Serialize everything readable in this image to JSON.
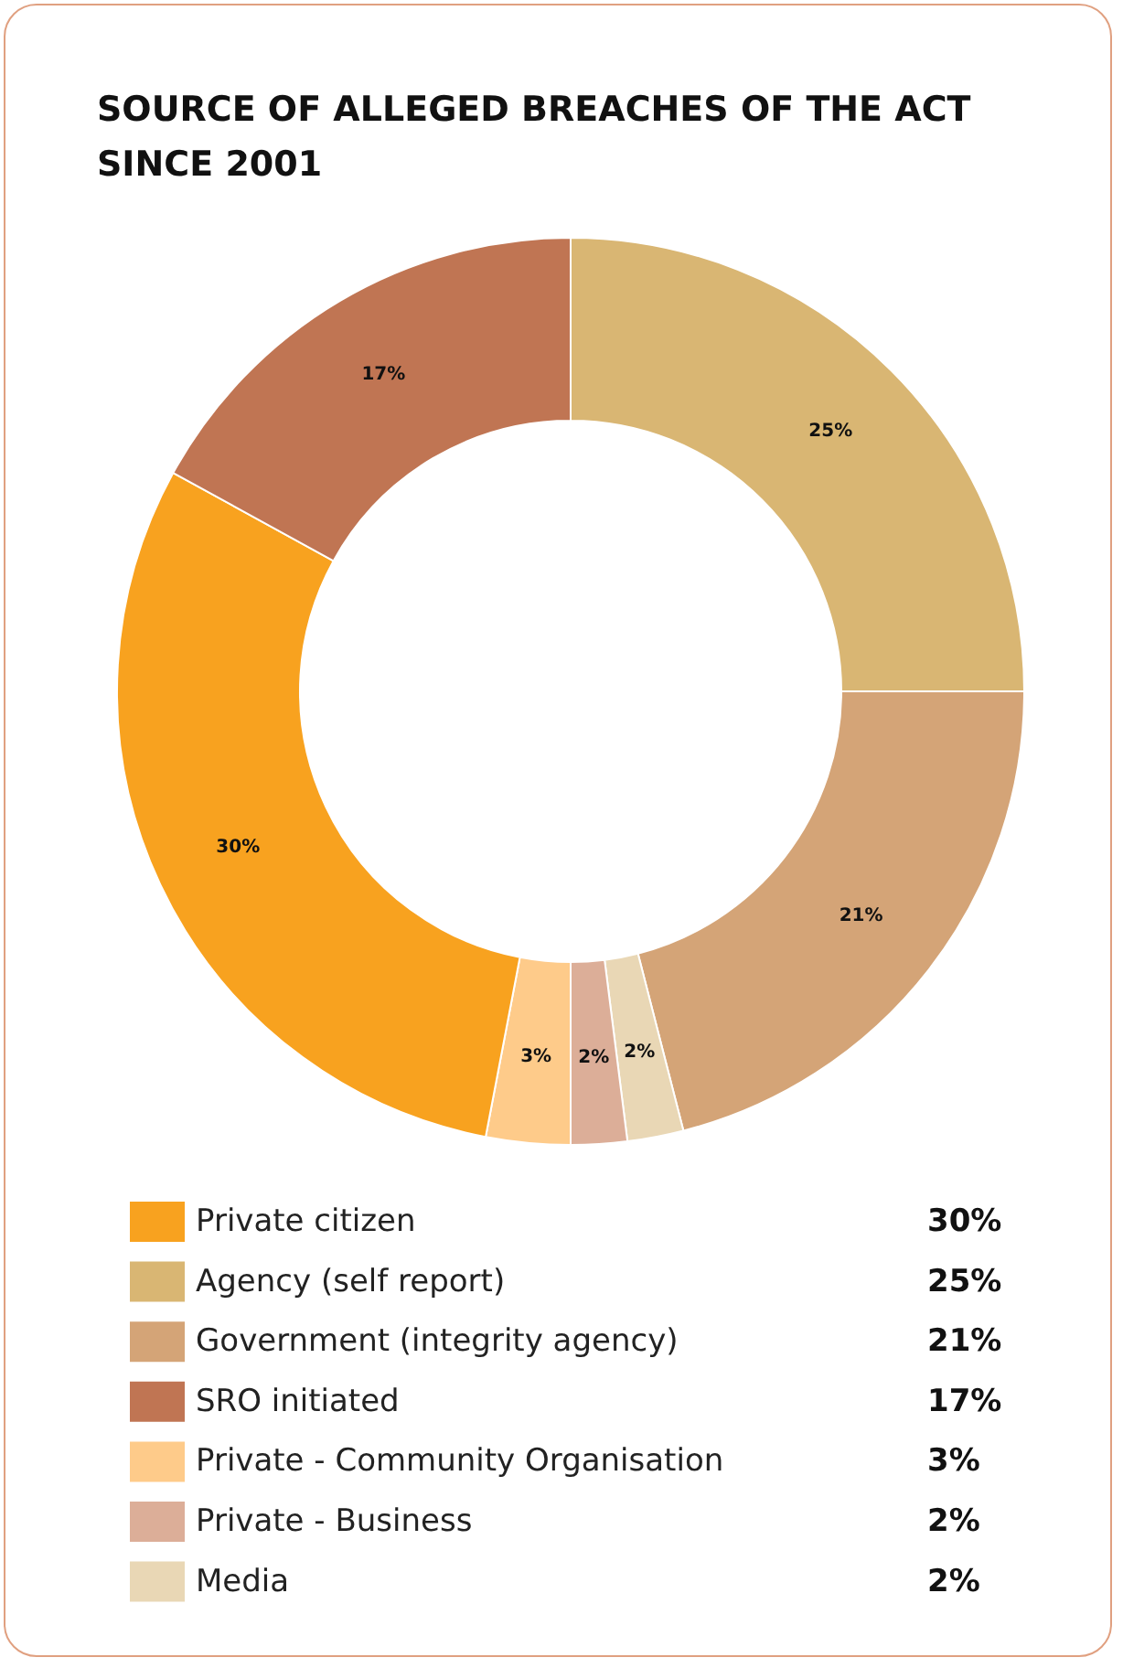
{
  "chart_data": {
    "type": "donut",
    "title": "SOURCE OF ALLEGED BREACHES OF THE ACT SINCE 2001",
    "categories": [
      "Agency (self report)",
      "Government (integrity agency)",
      "Media",
      "Private - Business",
      "Private - Community Organisation",
      "Private citizen",
      "SRO initiated"
    ],
    "values": [
      25,
      21,
      2,
      2,
      3,
      30,
      17
    ],
    "value_labels": [
      "25%",
      "21%",
      "2%",
      "2%",
      "3%",
      "30%",
      "17%"
    ],
    "colors": [
      "#d9b673",
      "#d4a477",
      "#e9d7b5",
      "#dcae98",
      "#fecb8a",
      "#f8a21f",
      "#c07553"
    ],
    "legend": "bottom"
  }
}
